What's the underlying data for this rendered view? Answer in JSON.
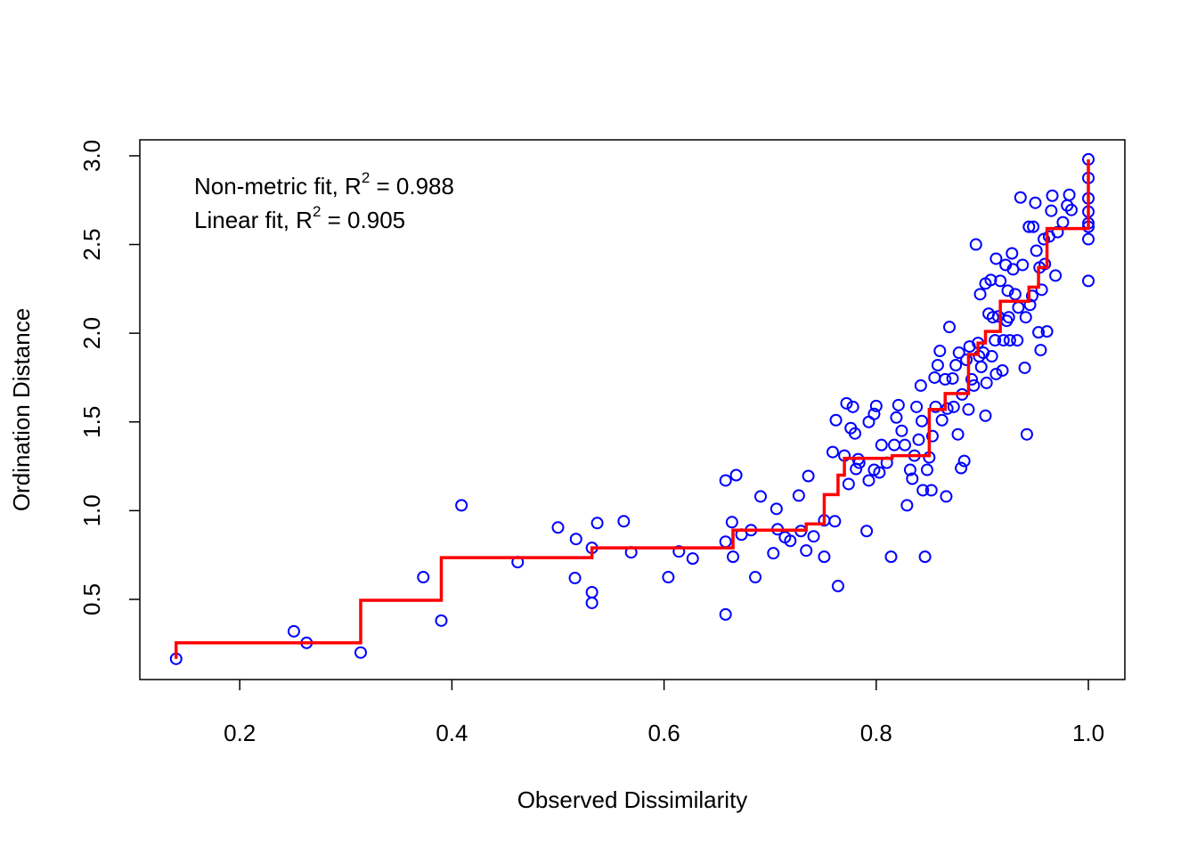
{
  "chart_data": {
    "type": "scatter",
    "xlabel": "Observed Dissimilarity",
    "ylabel": "Ordination Distance",
    "annotations": [
      {
        "prefix": "Non-metric fit, R",
        "sup": "2",
        "suffix": " = 0.988"
      },
      {
        "prefix": "Linear fit, R",
        "sup": "2",
        "suffix": " = 0.905"
      }
    ],
    "xlim": [
      0.1058,
      1.0344
    ],
    "ylim": [
      0.048,
      3.09
    ],
    "xticks": [
      0.2,
      0.4,
      0.6,
      0.8,
      {
        "value": 1,
        "label": "1.0"
      }
    ],
    "yticks": [
      0.5,
      {
        "value": 1,
        "label": "1.0"
      },
      1.5,
      {
        "value": 2,
        "label": "2.0"
      },
      2.5,
      {
        "value": 3,
        "label": "3.0"
      }
    ],
    "color": "#0000ff",
    "x": [
      0.14,
      0.251,
      0.263,
      0.314,
      0.373,
      0.39,
      0.409,
      0.462,
      0.5,
      0.516,
      0.517,
      0.532,
      0.532,
      0.532,
      0.537,
      0.562,
      0.569,
      0.604,
      0.614,
      0.627,
      0.658,
      0.658,
      0.658,
      0.664,
      0.665,
      0.668,
      0.673,
      0.682,
      0.686,
      0.691,
      0.703,
      0.706,
      0.707,
      0.714,
      0.719,
      0.727,
      0.729,
      0.734,
      0.736,
      0.741,
      0.751,
      0.751,
      0.759,
      0.761,
      0.762,
      0.764,
      0.77,
      0.772,
      0.774,
      0.776,
      0.778,
      0.78,
      0.783,
      0.781,
      0.784,
      0.791,
      0.793,
      0.793,
      0.798,
      0.798,
      0.8,
      0.803,
      0.805,
      0.81,
      0.814,
      0.817,
      0.819,
      0.821,
      0.824,
      0.827,
      0.829,
      0.832,
      0.834,
      0.836,
      0.838,
      0.84,
      0.842,
      0.843,
      0.844,
      0.846,
      0.848,
      0.85,
      0.852,
      0.853,
      0.855,
      0.856,
      0.858,
      0.86,
      0.862,
      0.865,
      0.866,
      0.867,
      0.869,
      0.872,
      0.873,
      0.875,
      0.877,
      0.878,
      0.88,
      0.881,
      0.883,
      0.885,
      0.887,
      0.888,
      0.89,
      0.892,
      0.894,
      0.896,
      0.898,
      0.899,
      0.901,
      0.903,
      0.904,
      0.906,
      0.908,
      0.909,
      0.91,
      0.912,
      0.913,
      0.915,
      0.917,
      0.919,
      0.92,
      0.922,
      0.924,
      0.925,
      0.926,
      0.928,
      0.929,
      0.931,
      0.933,
      0.934,
      0.936,
      0.938,
      0.94,
      0.941,
      0.942,
      0.944,
      0.945,
      0.947,
      0.95,
      0.951,
      0.953,
      0.954,
      0.955,
      0.956,
      0.958,
      0.959,
      0.961,
      0.963,
      0.965,
      0.966,
      0.969,
      0.971,
      0.976,
      0.98,
      0.982,
      0.984,
      1,
      1,
      1,
      1,
      1,
      1,
      1,
      1,
      0.897,
      0.903,
      0.923,
      0.948,
      0.913
    ],
    "y": [
      0.165,
      0.32,
      0.255,
      0.2,
      0.625,
      0.38,
      1.03,
      0.71,
      0.905,
      0.62,
      0.84,
      0.79,
      0.54,
      0.48,
      0.93,
      0.94,
      0.765,
      0.625,
      0.77,
      0.73,
      1.17,
      0.825,
      0.415,
      0.935,
      0.74,
      1.2,
      0.865,
      0.89,
      0.625,
      1.08,
      0.76,
      1.01,
      0.895,
      0.85,
      0.83,
      1.085,
      0.885,
      0.775,
      1.195,
      0.855,
      0.945,
      0.74,
      1.33,
      0.94,
      1.51,
      0.575,
      1.31,
      1.605,
      1.15,
      1.465,
      1.585,
      1.435,
      1.29,
      1.235,
      1.27,
      0.885,
      1.5,
      1.17,
      1.545,
      1.23,
      1.59,
      1.215,
      1.37,
      1.27,
      0.74,
      1.37,
      1.525,
      1.595,
      1.45,
      1.37,
      1.03,
      1.23,
      1.18,
      1.31,
      1.585,
      1.4,
      1.705,
      1.505,
      1.115,
      0.74,
      1.23,
      1.3,
      1.115,
      1.42,
      1.75,
      1.585,
      1.82,
      1.9,
      1.51,
      1.74,
      1.08,
      1.575,
      2.035,
      1.745,
      1.585,
      1.82,
      1.43,
      1.89,
      1.24,
      1.655,
      1.28,
      1.85,
      1.57,
      1.925,
      1.74,
      1.705,
      2.5,
      1.945,
      2.22,
      1.81,
      1.89,
      1.535,
      1.72,
      2.11,
      2.3,
      1.87,
      2.09,
      1.96,
      1.77,
      2.095,
      2.295,
      1.79,
      1.96,
      2.385,
      2.24,
      2.09,
      1.96,
      2.45,
      2.36,
      2.22,
      1.96,
      2.145,
      2.765,
      2.385,
      1.805,
      2.09,
      1.43,
      2.6,
      2.16,
      2.21,
      2.735,
      2.465,
      2.005,
      2.37,
      1.905,
      2.245,
      2.53,
      2.39,
      2.01,
      2.545,
      2.69,
      2.775,
      2.325,
      2.57,
      2.625,
      2.72,
      2.78,
      2.695,
      2.98,
      2.875,
      2.76,
      2.685,
      2.62,
      2.53,
      2.295,
      2.6,
      1.87,
      2.28,
      2.07,
      2.6,
      2.42
    ],
    "fit": {
      "color": "#ff0000",
      "x": [
        0.14,
        0.14,
        0.314,
        0.39,
        0.532,
        0.665,
        0.734,
        0.751,
        0.764,
        0.77,
        0.815,
        0.85,
        0.865,
        0.887,
        0.896,
        0.903,
        0.917,
        0.944,
        0.953,
        0.961,
        1
      ],
      "y": [
        0.165,
        0.255,
        0.495,
        0.735,
        0.79,
        0.89,
        0.925,
        1.09,
        1.2,
        1.295,
        1.31,
        1.57,
        1.66,
        1.88,
        1.945,
        2.01,
        2.18,
        2.26,
        2.37,
        2.59,
        2.98
      ]
    }
  }
}
